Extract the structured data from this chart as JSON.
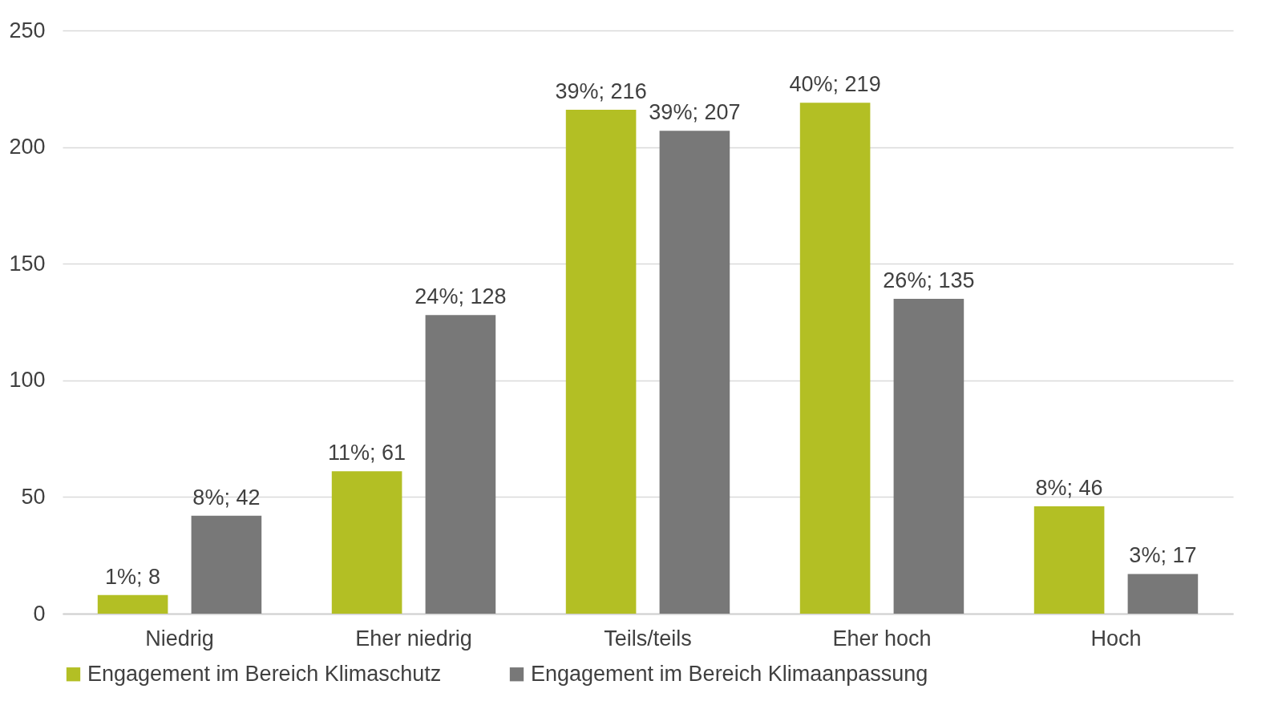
{
  "chart_data": {
    "type": "bar",
    "categories": [
      "Niedrig",
      "Eher niedrig",
      "Teils/teils",
      "Eher hoch",
      "Hoch"
    ],
    "series": [
      {
        "name": "Engagement im Bereich Klimaschutz",
        "color": "#b3bf24",
        "values": [
          8,
          61,
          216,
          219,
          46
        ],
        "value_labels": [
          "1%; 8",
          "11%; 61",
          "39%; 216",
          "40%; 219",
          "8%; 46"
        ]
      },
      {
        "name": "Engagement im Bereich Klimaanpassung",
        "color": "#787878",
        "values": [
          42,
          128,
          207,
          135,
          17
        ],
        "value_labels": [
          "8%; 42",
          "24%; 128",
          "39%; 207",
          "26%; 135",
          "3%; 17"
        ]
      }
    ],
    "ylim": [
      0,
      250
    ],
    "yticks": [
      0,
      50,
      100,
      150,
      200,
      250
    ],
    "grid": "y",
    "legend": "bottom"
  }
}
